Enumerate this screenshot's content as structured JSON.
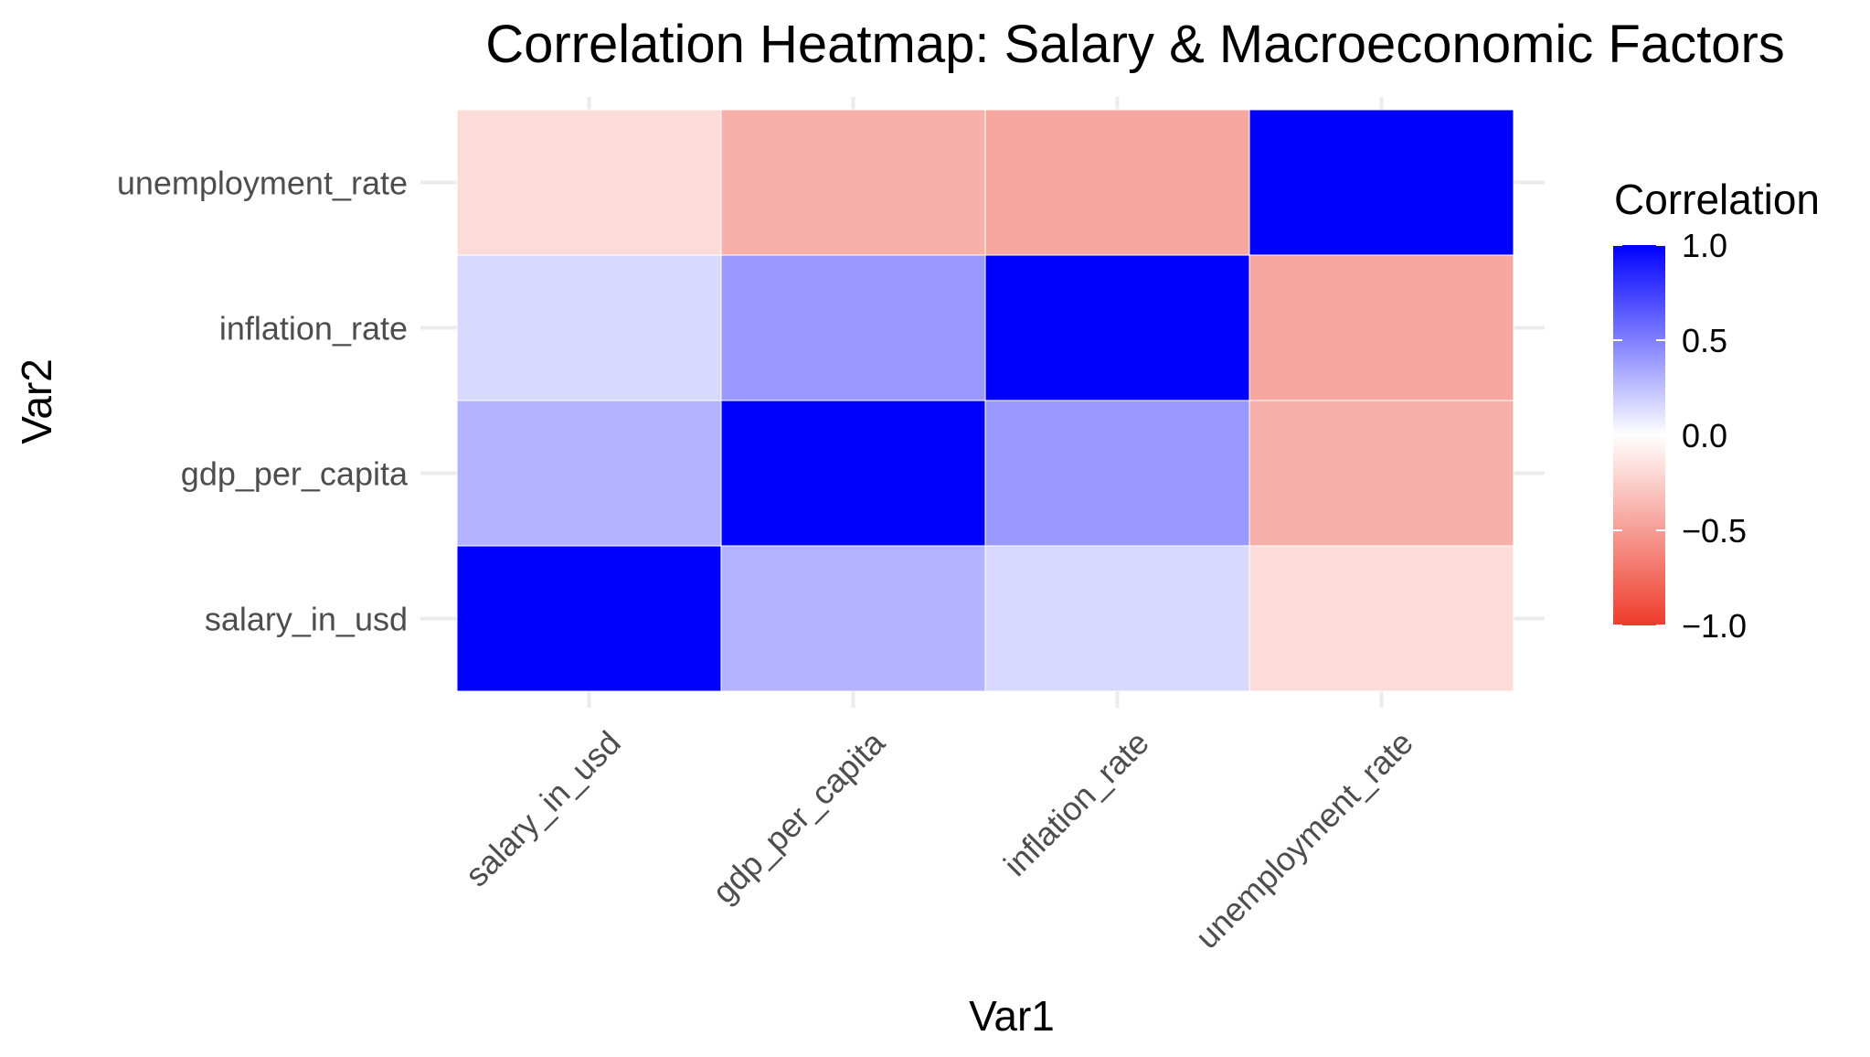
{
  "chart_data": {
    "type": "heatmap",
    "title": "Correlation Heatmap: Salary & Macroeconomic Factors",
    "xlabel": "Var1",
    "ylabel": "Var2",
    "x_categories": [
      "salary_in_usd",
      "gdp_per_capita",
      "inflation_rate",
      "unemployment_rate"
    ],
    "y_categories": [
      "salary_in_usd",
      "gdp_per_capita",
      "inflation_rate",
      "unemployment_rate"
    ],
    "values": [
      [
        1.0,
        0.3,
        0.15,
        -0.18
      ],
      [
        0.3,
        1.0,
        0.4,
        -0.4
      ],
      [
        0.15,
        0.4,
        1.0,
        -0.45
      ],
      [
        -0.18,
        -0.4,
        -0.45,
        1.0
      ]
    ],
    "color_scale": {
      "low": "#ee3b2b",
      "mid": "#ffffff",
      "high": "#0000ff",
      "limits": [
        -1,
        1
      ]
    },
    "legend": {
      "title": "Correlation",
      "position": "right",
      "breaks": [
        1.0,
        0.5,
        0.0,
        -0.5,
        -1.0
      ],
      "break_labels": [
        "1.0",
        "0.5",
        "0.0",
        "−0.5",
        "−1.0"
      ]
    },
    "grid": true
  }
}
